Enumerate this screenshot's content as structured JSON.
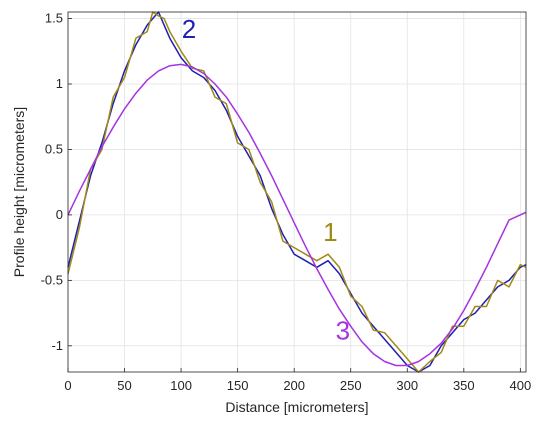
{
  "chart_data": {
    "type": "line",
    "xlabel": "Distance [micrometers]",
    "ylabel": "Profile height [micrometers]",
    "xlim": [
      0,
      405
    ],
    "ylim": [
      -1.2,
      1.55
    ],
    "xticks": [
      0,
      50,
      100,
      150,
      200,
      250,
      300,
      350,
      400
    ],
    "yticks": [
      -1,
      -0.5,
      0,
      0.5,
      1,
      1.5
    ],
    "grid": true,
    "series": [
      {
        "name": "2",
        "color": "#1f1fb4",
        "x": [
          0,
          10,
          20,
          30,
          40,
          50,
          60,
          70,
          75,
          80,
          85,
          90,
          100,
          110,
          120,
          130,
          140,
          150,
          160,
          170,
          180,
          190,
          200,
          210,
          220,
          230,
          240,
          250,
          260,
          270,
          280,
          290,
          300,
          310,
          320,
          330,
          340,
          350,
          360,
          370,
          380,
          390,
          400,
          405
        ],
        "y": [
          -0.4,
          -0.05,
          0.3,
          0.55,
          0.85,
          1.1,
          1.3,
          1.45,
          1.5,
          1.55,
          1.45,
          1.35,
          1.2,
          1.1,
          1.05,
          0.95,
          0.8,
          0.6,
          0.45,
          0.3,
          0.05,
          -0.15,
          -0.3,
          -0.35,
          -0.4,
          -0.35,
          -0.45,
          -0.6,
          -0.75,
          -0.85,
          -0.95,
          -1.05,
          -1.15,
          -1.2,
          -1.15,
          -1.0,
          -0.9,
          -0.8,
          -0.75,
          -0.65,
          -0.55,
          -0.5,
          -0.4,
          -0.38
        ]
      },
      {
        "name": "1",
        "color": "#a08a14",
        "x": [
          0,
          10,
          20,
          30,
          40,
          50,
          60,
          70,
          75,
          80,
          85,
          90,
          100,
          110,
          120,
          130,
          140,
          150,
          160,
          170,
          180,
          190,
          200,
          210,
          220,
          230,
          240,
          250,
          260,
          270,
          280,
          290,
          300,
          310,
          320,
          330,
          340,
          350,
          360,
          370,
          380,
          390,
          400,
          405
        ],
        "y": [
          -0.45,
          -0.1,
          0.35,
          0.5,
          0.9,
          1.05,
          1.35,
          1.4,
          1.55,
          1.52,
          1.5,
          1.4,
          1.25,
          1.12,
          1.1,
          0.9,
          0.85,
          0.55,
          0.5,
          0.25,
          0.1,
          -0.2,
          -0.25,
          -0.3,
          -0.35,
          -0.3,
          -0.4,
          -0.62,
          -0.7,
          -0.88,
          -0.9,
          -1.0,
          -1.1,
          -1.2,
          -1.12,
          -1.05,
          -0.85,
          -0.85,
          -0.7,
          -0.7,
          -0.5,
          -0.55,
          -0.38,
          -0.4
        ]
      },
      {
        "name": "3",
        "color": "#a633e0",
        "x": [
          0,
          10,
          20,
          30,
          40,
          50,
          60,
          70,
          80,
          90,
          100,
          110,
          120,
          130,
          140,
          150,
          160,
          170,
          180,
          190,
          200,
          210,
          220,
          230,
          240,
          250,
          260,
          270,
          280,
          290,
          300,
          310,
          320,
          330,
          340,
          350,
          360,
          370,
          380,
          390,
          400,
          405
        ],
        "y": [
          0.0,
          0.18,
          0.35,
          0.52,
          0.67,
          0.81,
          0.93,
          1.03,
          1.1,
          1.14,
          1.15,
          1.13,
          1.08,
          1.0,
          0.9,
          0.77,
          0.63,
          0.47,
          0.3,
          0.12,
          -0.06,
          -0.24,
          -0.41,
          -0.57,
          -0.72,
          -0.85,
          -0.97,
          -1.06,
          -1.12,
          -1.15,
          -1.15,
          -1.12,
          -1.06,
          -0.98,
          -0.87,
          -0.73,
          -0.57,
          -0.4,
          -0.22,
          -0.04,
          0.0,
          0.02
        ]
      }
    ],
    "annotations": [
      {
        "text": "2",
        "x": 107,
        "y": 1.35,
        "color": "#1f1fb4"
      },
      {
        "text": "1",
        "x": 232,
        "y": -0.2,
        "color": "#a08a14"
      },
      {
        "text": "3",
        "x": 243,
        "y": -0.95,
        "color": "#a633e0"
      }
    ]
  }
}
